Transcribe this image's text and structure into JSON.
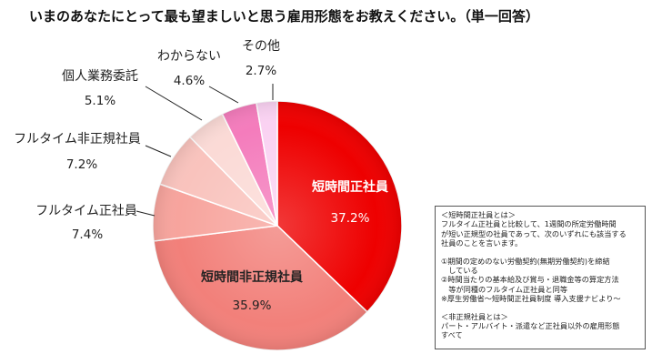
{
  "chart_data": {
    "type": "pie",
    "title": "いまのあなたにとって最も望ましいと思う雇用形態をお教えください。（単一回答）",
    "slices": [
      {
        "label": "短時間正社員",
        "value": 37.2,
        "value_label": "37.2%",
        "color": "#ee0000",
        "label_style": "inside",
        "text_color": "#ffffff"
      },
      {
        "label": "短時間非正規社員",
        "value": 35.9,
        "value_label": "35.9%",
        "color": "#f2807a",
        "label_style": "inside",
        "text_color": "#222222"
      },
      {
        "label": "フルタイム正社員",
        "value": 7.4,
        "value_label": "7.4%",
        "color": "#f7a49d",
        "label_style": "outside",
        "text_color": "#222222"
      },
      {
        "label": "フルタイム非正規社員",
        "value": 7.2,
        "value_label": "7.2%",
        "color": "#f9c3bd",
        "label_style": "outside",
        "text_color": "#222222"
      },
      {
        "label": "個人業務委託",
        "value": 5.1,
        "value_label": "5.1%",
        "color": "#fbdad6",
        "label_style": "outside",
        "text_color": "#222222"
      },
      {
        "label": "わからない",
        "value": 4.6,
        "value_label": "4.6%",
        "color": "#f47cbc",
        "label_style": "outside",
        "text_color": "#222222"
      },
      {
        "label": "その他",
        "value": 2.7,
        "value_label": "2.7%",
        "color": "#fad2f2",
        "label_style": "outside",
        "text_color": "#222222"
      }
    ]
  },
  "notes": [
    "＜短時間正社員とは＞",
    "フルタイム正社員と比較して、1週間の所定労働時間",
    "が短い正規型の社員であって、次のいずれにも該当する",
    "社員のことを言います。",
    "",
    "①期間の定めのない労働契約(無期労働契約)を締結",
    "　している",
    "②時間当たりの基本給及び賞与・退職金等の算定方法",
    "　等が同種のフルタイム正社員と同等",
    "※厚生労働省～短時間正社員制度 導入支援ナビより～",
    "",
    "＜非正規社員とは＞",
    "パート・アルバイト・派遣など正社員以外の雇用形態",
    "すべて"
  ]
}
